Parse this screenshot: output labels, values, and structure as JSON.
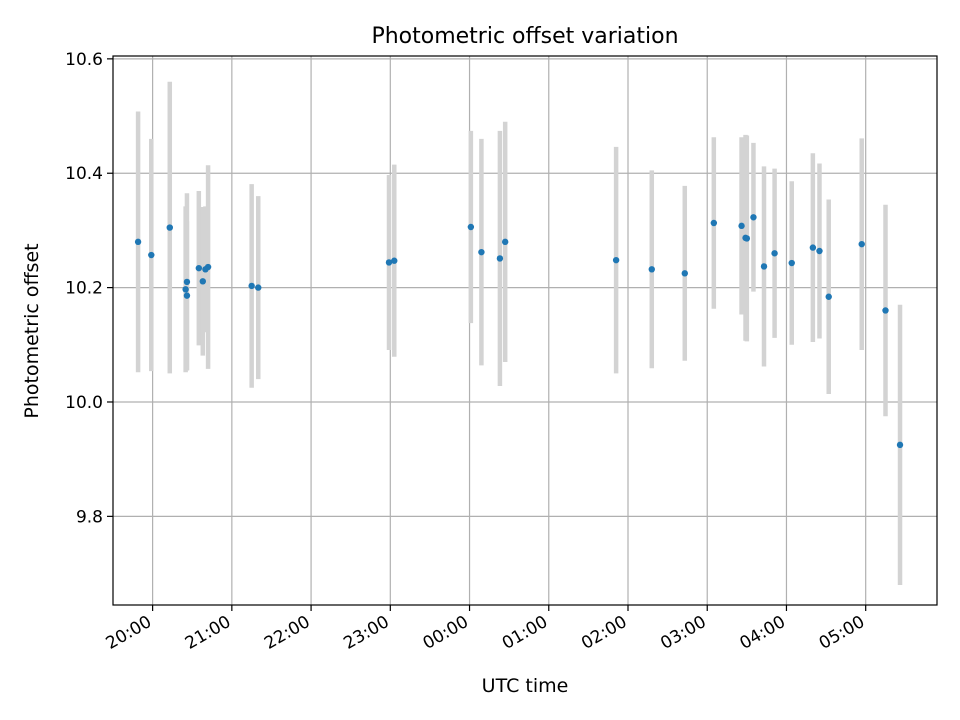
{
  "chart_data": {
    "type": "scatter",
    "title": "Photometric offset variation",
    "xlabel": "UTC time",
    "ylabel": "Photometric offset",
    "x_unit": "time",
    "xlim": [
      "19:30",
      "05:54"
    ],
    "ylim": [
      9.645,
      10.605
    ],
    "x_ticks": [
      "20:00",
      "21:00",
      "22:00",
      "23:00",
      "00:00",
      "01:00",
      "02:00",
      "03:00",
      "04:00",
      "05:00"
    ],
    "y_ticks": [
      9.8,
      10.0,
      10.2,
      10.4,
      10.6
    ],
    "y_tick_labels": [
      "9.8",
      "10.0",
      "10.2",
      "10.4",
      "10.6"
    ],
    "grid": true,
    "colors": {
      "points": "#1f77b4",
      "errorbars": "#d3d3d3",
      "grid": "#b0b0b0"
    },
    "series": [
      {
        "points": [
          {
            "x": "19:49",
            "y": 10.28,
            "err": 0.228
          },
          {
            "x": "19:59",
            "y": 10.257,
            "err": 0.203
          },
          {
            "x": "20:13",
            "y": 10.305,
            "err": 0.255
          },
          {
            "x": "20:25",
            "y": 10.197,
            "err": 0.145
          },
          {
            "x": "20:26",
            "y": 10.21,
            "err": 0.155
          },
          {
            "x": "20:26",
            "y": 10.186,
            "err": 0.13
          },
          {
            "x": "20:35",
            "y": 10.234,
            "err": 0.135
          },
          {
            "x": "20:38",
            "y": 10.211,
            "err": 0.13
          },
          {
            "x": "20:40",
            "y": 10.232,
            "err": 0.11
          },
          {
            "x": "20:42",
            "y": 10.236,
            "err": 0.178
          },
          {
            "x": "21:15",
            "y": 10.203,
            "err": 0.178
          },
          {
            "x": "21:20",
            "y": 10.2,
            "err": 0.16
          },
          {
            "x": "22:59",
            "y": 10.244,
            "err": 0.153
          },
          {
            "x": "23:03",
            "y": 10.247,
            "err": 0.168
          },
          {
            "x": "00:01",
            "y": 10.306,
            "err": 0.168
          },
          {
            "x": "00:09",
            "y": 10.262,
            "err": 0.198
          },
          {
            "x": "00:23",
            "y": 10.251,
            "err": 0.223
          },
          {
            "x": "00:27",
            "y": 10.28,
            "err": 0.21
          },
          {
            "x": "01:51",
            "y": 10.248,
            "err": 0.198
          },
          {
            "x": "02:18",
            "y": 10.232,
            "err": 0.173
          },
          {
            "x": "02:43",
            "y": 10.225,
            "err": 0.153
          },
          {
            "x": "03:05",
            "y": 10.313,
            "err": 0.15
          },
          {
            "x": "03:26",
            "y": 10.308,
            "err": 0.155
          },
          {
            "x": "03:29",
            "y": 10.287,
            "err": 0.18
          },
          {
            "x": "03:30",
            "y": 10.286,
            "err": 0.18
          },
          {
            "x": "03:35",
            "y": 10.323,
            "err": 0.13
          },
          {
            "x": "03:43",
            "y": 10.237,
            "err": 0.175
          },
          {
            "x": "03:51",
            "y": 10.26,
            "err": 0.148
          },
          {
            "x": "04:04",
            "y": 10.243,
            "err": 0.143
          },
          {
            "x": "04:20",
            "y": 10.27,
            "err": 0.165
          },
          {
            "x": "04:25",
            "y": 10.264,
            "err": 0.153
          },
          {
            "x": "04:32",
            "y": 10.184,
            "err": 0.17
          },
          {
            "x": "04:57",
            "y": 10.276,
            "err": 0.185
          },
          {
            "x": "05:15",
            "y": 10.16,
            "err": 0.185
          },
          {
            "x": "05:26",
            "y": 9.925,
            "err": 0.245
          }
        ]
      }
    ]
  }
}
